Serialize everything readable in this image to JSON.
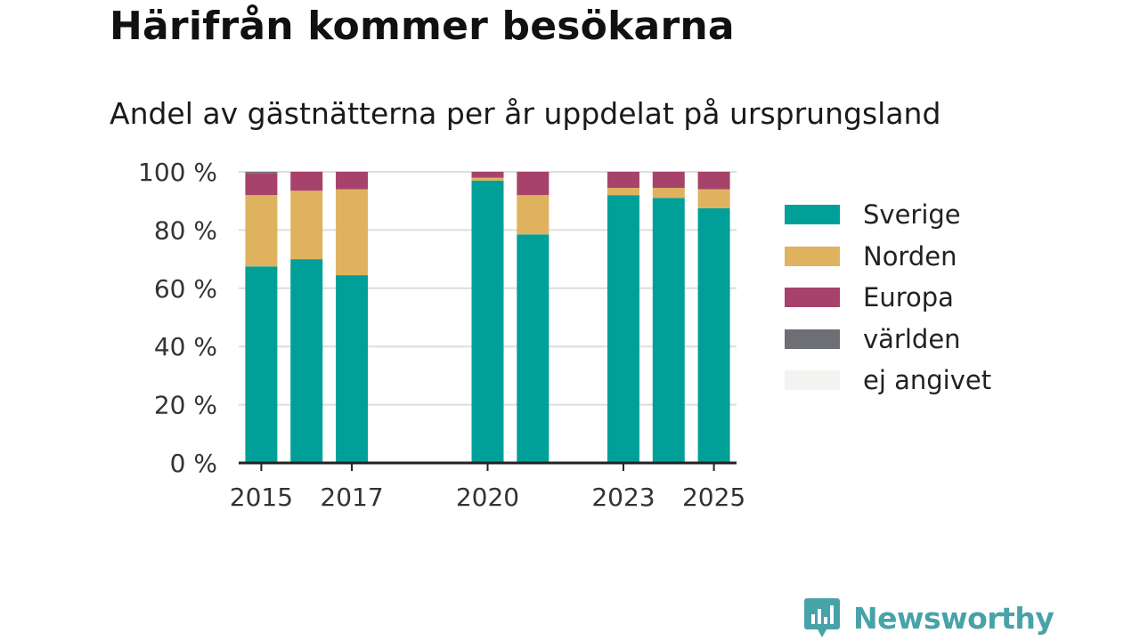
{
  "title": "Härifrån kommer besökarna",
  "subtitle": "Andel av gästnätterna per år uppdelat på ursprungsland",
  "brand": "Newsworthy",
  "colors": {
    "sverige": "#00a098",
    "norden": "#deb25f",
    "europa": "#a7426b",
    "varlden": "#6e6f75",
    "ej_angivet": "#f3f3f1",
    "grid": "#dddddd",
    "axis": "#222222",
    "brand": "#47a3a8"
  },
  "legend": [
    {
      "name": "Sverige",
      "color": "#00a098"
    },
    {
      "name": "Norden",
      "color": "#deb25f"
    },
    {
      "name": "Europa",
      "color": "#a7426b"
    },
    {
      "name": "världen",
      "color": "#6e6f75"
    },
    {
      "name": "ej angivet",
      "color": "#f3f3f1"
    }
  ],
  "chart_data": {
    "type": "bar",
    "stacked": true,
    "x": [
      2015,
      2016,
      2017,
      2020,
      2021,
      2023,
      2024,
      2025
    ],
    "x_ticks": [
      "2015",
      "2017",
      "2020",
      "2023",
      "2025"
    ],
    "xlim": [
      2014.5,
      2025.5
    ],
    "y_ticks": [
      "0 %",
      "20 %",
      "40 %",
      "60 %",
      "80 %",
      "100 %"
    ],
    "ylim": [
      0,
      100
    ],
    "grid": true,
    "legend_position": "right",
    "series": [
      {
        "name": "Sverige",
        "color": "#00a098",
        "values": [
          67.5,
          70,
          64.5,
          97,
          78.5,
          92,
          91,
          87.5
        ]
      },
      {
        "name": "Norden",
        "color": "#deb25f",
        "values": [
          24.5,
          23.5,
          29.5,
          1,
          13.5,
          2.5,
          3.5,
          6.5
        ]
      },
      {
        "name": "Europa",
        "color": "#a7426b",
        "values": [
          7.5,
          6.5,
          6,
          2,
          8,
          5.5,
          5.5,
          6
        ]
      },
      {
        "name": "världen",
        "color": "#6e6f75",
        "values": [
          0.5,
          0,
          0,
          0,
          0,
          0,
          0,
          0
        ]
      },
      {
        "name": "ej angivet",
        "color": "#f3f3f1",
        "values": [
          0,
          0,
          0,
          0,
          0,
          0,
          0,
          0
        ]
      }
    ]
  }
}
